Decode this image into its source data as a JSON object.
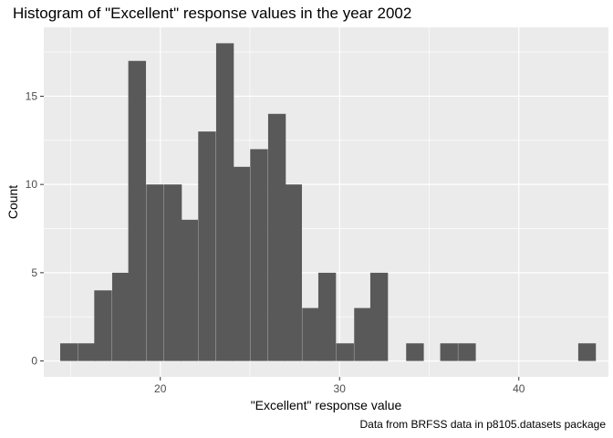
{
  "chart_data": {
    "type": "bar",
    "title": "Histogram of \"Excellent\" response values in the year 2002",
    "caption": "Data from BRFSS data in p8105.datasets package",
    "xlabel": "\"Excellent\" response value",
    "ylabel": "Count",
    "xlim": [
      13.5,
      45.0
    ],
    "ylim": [
      -0.9,
      18.9
    ],
    "xticks": [
      20,
      30,
      40
    ],
    "yticks": [
      0,
      5,
      10,
      15
    ],
    "bin_width": 0.97,
    "bins": [
      {
        "x": 14.9,
        "count": 1
      },
      {
        "x": 15.9,
        "count": 1
      },
      {
        "x": 16.8,
        "count": 4
      },
      {
        "x": 17.8,
        "count": 5
      },
      {
        "x": 18.7,
        "count": 17
      },
      {
        "x": 19.7,
        "count": 10
      },
      {
        "x": 20.7,
        "count": 10
      },
      {
        "x": 21.6,
        "count": 8
      },
      {
        "x": 22.6,
        "count": 13
      },
      {
        "x": 23.6,
        "count": 18
      },
      {
        "x": 24.5,
        "count": 11
      },
      {
        "x": 25.5,
        "count": 12
      },
      {
        "x": 26.5,
        "count": 14
      },
      {
        "x": 27.4,
        "count": 10
      },
      {
        "x": 28.4,
        "count": 3
      },
      {
        "x": 29.3,
        "count": 5
      },
      {
        "x": 30.3,
        "count": 1
      },
      {
        "x": 31.3,
        "count": 3
      },
      {
        "x": 32.2,
        "count": 5
      },
      {
        "x": 33.2,
        "count": 0
      },
      {
        "x": 34.2,
        "count": 1
      },
      {
        "x": 35.1,
        "count": 0
      },
      {
        "x": 36.1,
        "count": 1
      },
      {
        "x": 37.1,
        "count": 1
      },
      {
        "x": 38.0,
        "count": 0
      },
      {
        "x": 39.0,
        "count": 0
      },
      {
        "x": 39.9,
        "count": 0
      },
      {
        "x": 40.9,
        "count": 0
      },
      {
        "x": 41.9,
        "count": 0
      },
      {
        "x": 42.8,
        "count": 0
      },
      {
        "x": 43.8,
        "count": 1
      }
    ],
    "colors": {
      "panel_background": "#ebebeb",
      "grid_major": "#ffffff",
      "bar_fill": "#595959"
    },
    "grid": true,
    "legend": "none"
  }
}
